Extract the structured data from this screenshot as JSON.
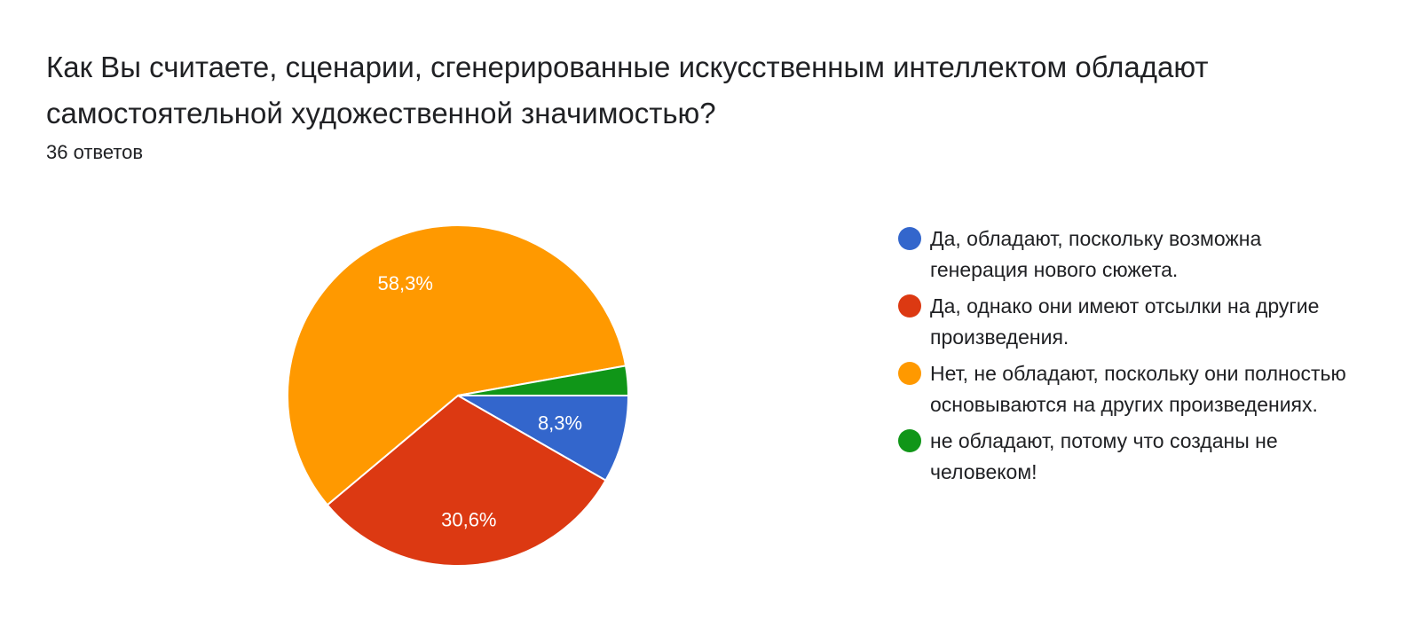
{
  "header": {
    "title": "Как Вы считаете, сценарии, сгенерированные искусственным интеллектом обладают самостоятельной художественной значимостью?",
    "responses": "36 ответов"
  },
  "chart_data": {
    "type": "pie",
    "categories": [
      "Да, обладают, поскольку возможна генерация нового сюжета.",
      "Да, однако они имеют отсылки на другие произведения.",
      "Нет, не обладают, поскольку они полностью основываются на других произведениях.",
      "не обладают, потому что созданы не человеком!"
    ],
    "values": [
      8.3,
      30.6,
      58.3,
      2.8
    ],
    "slice_labels": [
      "8,3%",
      "30,6%",
      "58,3%",
      ""
    ],
    "colors": [
      "#3366cc",
      "#dc3912",
      "#ff9900",
      "#109618"
    ],
    "legend_position": "right"
  }
}
